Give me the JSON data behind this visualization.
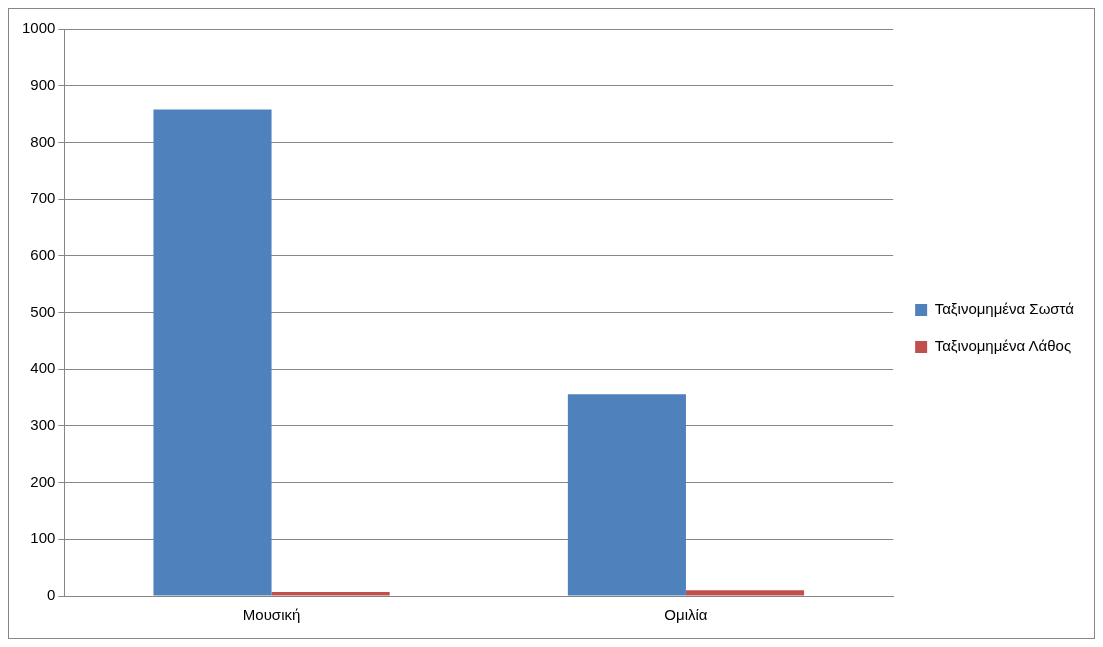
{
  "chart_data": {
    "type": "bar",
    "categories": [
      "Μουσική",
      "Ομιλία"
    ],
    "series": [
      {
        "name": "Ταξινομημένα Σωστά",
        "color": "#4f81bd",
        "values": [
          858,
          356
        ]
      },
      {
        "name": "Ταξινομημένα Λάθος",
        "color": "#c0504d",
        "values": [
          7,
          10
        ]
      }
    ],
    "ylim": [
      0,
      1000
    ],
    "yticks": [
      0,
      100,
      200,
      300,
      400,
      500,
      600,
      700,
      800,
      900,
      1000
    ],
    "grid": "y",
    "legend": "right"
  }
}
